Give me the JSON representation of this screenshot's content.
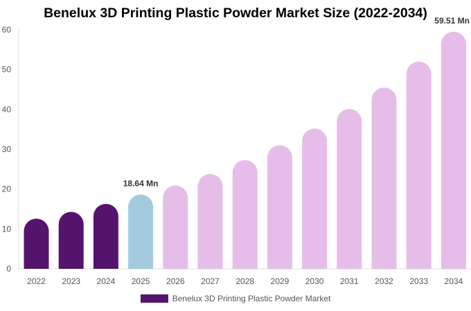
{
  "chart_data": {
    "type": "bar",
    "title": "Benelux 3D Printing Plastic Powder Market Size (2022-2034)",
    "categories": [
      "2022",
      "2023",
      "2024",
      "2025",
      "2026",
      "2027",
      "2028",
      "2029",
      "2030",
      "2031",
      "2032",
      "2033",
      "2034"
    ],
    "series": [
      {
        "name": "Benelux 3D Printing Plastic Powder Market",
        "values": [
          12.6,
          14.3,
          16.3,
          18.64,
          20.9,
          23.8,
          27.3,
          31.0,
          35.2,
          40.1,
          45.5,
          52.0,
          59.51
        ]
      }
    ],
    "ylim": [
      0,
      60
    ],
    "yticks": [
      0,
      10,
      20,
      30,
      40,
      50,
      60
    ],
    "xlabel": "",
    "ylabel": "",
    "data_labels": [
      {
        "category": "2025",
        "text": "18.64 Mn"
      },
      {
        "category": "2034",
        "text": "59.51 Mn"
      }
    ],
    "colors": {
      "historical": "#54146e",
      "base_year": "#a3cadd",
      "forecast": "#e6bde8"
    },
    "bar_color_groups": [
      "historical",
      "historical",
      "historical",
      "base_year",
      "forecast",
      "forecast",
      "forecast",
      "forecast",
      "forecast",
      "forecast",
      "forecast",
      "forecast",
      "forecast"
    ],
    "legend": {
      "position": "bottom",
      "swatch_color": "#54146e"
    },
    "grid": false
  }
}
